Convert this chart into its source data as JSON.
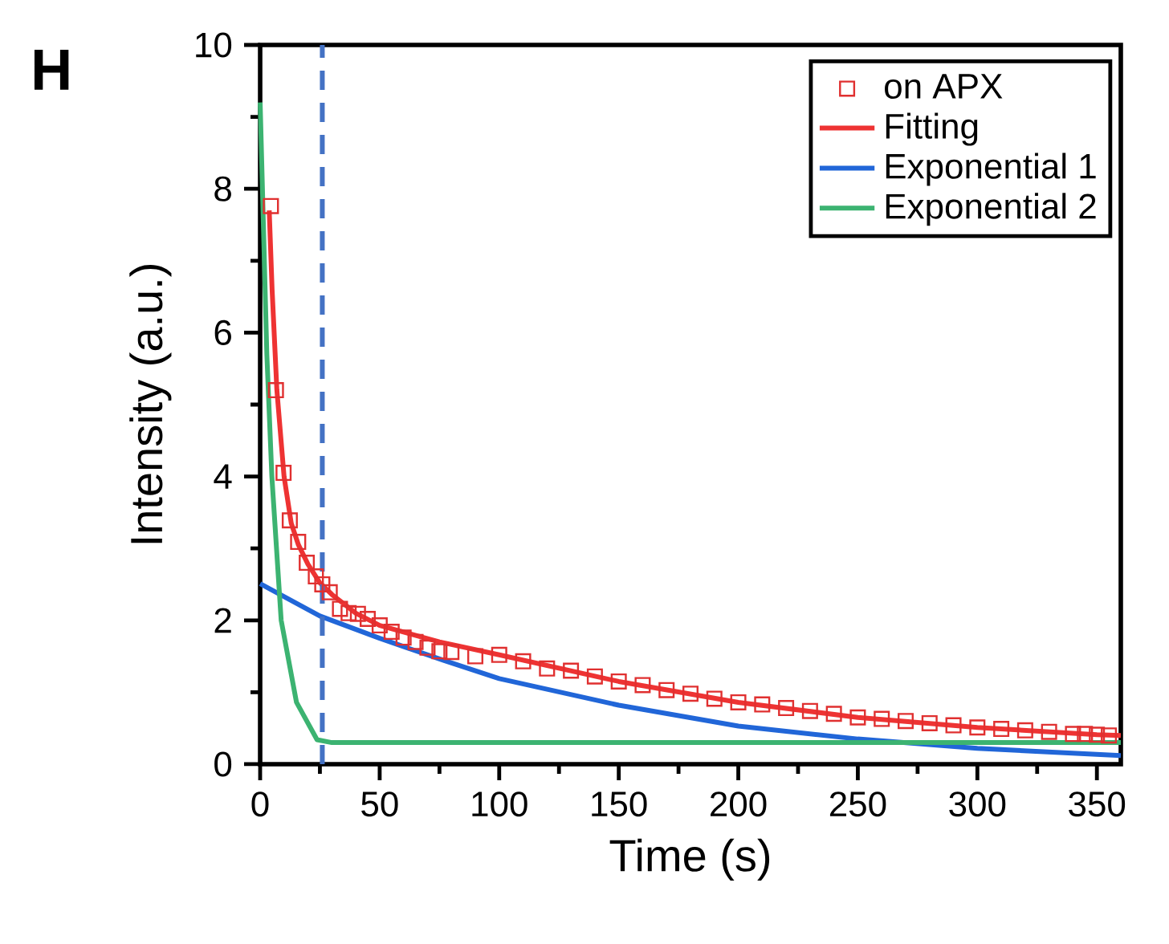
{
  "chart_data": {
    "type": "line",
    "xlabel": "Time (s)",
    "ylabel": "Intensity (a.u.)",
    "annotations": [
      "H"
    ],
    "xlim": [
      0,
      360
    ],
    "xticks": [
      0,
      50,
      100,
      150,
      200,
      250,
      300,
      350
    ],
    "ylim": [
      0,
      10
    ],
    "yticks": [
      0,
      2,
      4,
      6,
      8,
      10
    ],
    "legend": "top right",
    "grid": false,
    "ref_lines": [
      {
        "axis": "x",
        "value": 26,
        "color": "#4472c4",
        "line_style": "dashed"
      }
    ],
    "series": [
      {
        "name": "on APX",
        "type": "scatter",
        "marker": "square",
        "color": "#e03030",
        "x": [
          4.5,
          6.6,
          9.8,
          12.4,
          15.9,
          19.5,
          23.3,
          26,
          29.1,
          33.4,
          37,
          40.9,
          45,
          50,
          55,
          60,
          65,
          70,
          75,
          80,
          90,
          100,
          110,
          120,
          130,
          140,
          150,
          160,
          170,
          180,
          190,
          200,
          210,
          220,
          230,
          240,
          250,
          260,
          270,
          280,
          290,
          300,
          310,
          320,
          330,
          340,
          345,
          350,
          355
        ],
        "values": [
          7.76,
          5.2,
          4.05,
          3.39,
          3.09,
          2.8,
          2.61,
          2.5,
          2.39,
          2.16,
          2.1,
          2.09,
          2.02,
          1.93,
          1.84,
          1.76,
          1.7,
          1.62,
          1.57,
          1.56,
          1.5,
          1.52,
          1.43,
          1.33,
          1.3,
          1.22,
          1.15,
          1.1,
          1.03,
          0.98,
          0.91,
          0.86,
          0.83,
          0.78,
          0.74,
          0.7,
          0.65,
          0.63,
          0.6,
          0.57,
          0.54,
          0.51,
          0.49,
          0.47,
          0.45,
          0.42,
          0.42,
          0.41,
          0.4
        ]
      },
      {
        "name": "Fitting",
        "type": "line",
        "color": "#ee3333",
        "x": [
          3.8,
          5,
          7,
          10,
          13,
          16,
          20,
          25,
          30,
          40,
          50,
          75,
          100,
          150,
          200,
          250,
          300,
          350,
          360
        ],
        "values": [
          7.7,
          6.6,
          5.2,
          4.0,
          3.35,
          3.05,
          2.78,
          2.52,
          2.36,
          2.1,
          1.93,
          1.7,
          1.52,
          1.15,
          0.86,
          0.65,
          0.51,
          0.41,
          0.4
        ]
      },
      {
        "name": "Exponential 1",
        "type": "line",
        "color": "#2166d8",
        "x": [
          0,
          25,
          50,
          77,
          100,
          150,
          200,
          250,
          300,
          360
        ],
        "values": [
          2.51,
          2.06,
          1.75,
          1.44,
          1.19,
          0.82,
          0.53,
          0.35,
          0.22,
          0.12
        ]
      },
      {
        "name": "Exponential 2",
        "type": "line",
        "color": "#3cb371",
        "x": [
          0,
          2.8,
          4.9,
          8.8,
          15.2,
          23.8,
          30,
          50,
          100,
          200,
          300,
          360
        ],
        "values": [
          9.2,
          5.7,
          4.0,
          2.0,
          0.86,
          0.34,
          0.3,
          0.3,
          0.3,
          0.3,
          0.3,
          0.3
        ]
      }
    ]
  }
}
